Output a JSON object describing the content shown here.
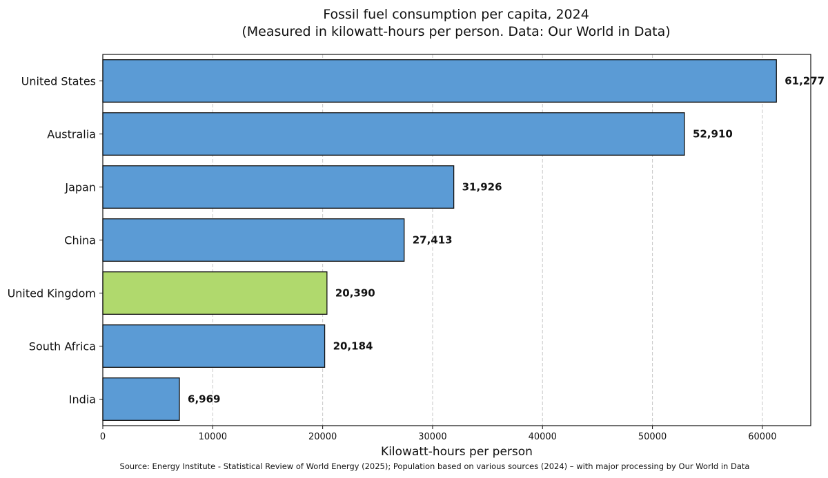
{
  "colors": {
    "bar_default": "#5b9bd5",
    "bar_highlight": "#b0d96d",
    "bar_edge": "#111111",
    "grid": "#c8c8c8"
  },
  "chart_data": {
    "type": "bar",
    "orientation": "horizontal",
    "title": "Fossil fuel consumption per capita, 2024",
    "subtitle": "(Measured in kilowatt-hours per person. Data: Our World in Data)",
    "xlabel": "Kilowatt-hours per person",
    "ylabel": "",
    "xlim": [
      0,
      64400
    ],
    "xticks": [
      0,
      10000,
      20000,
      30000,
      40000,
      50000,
      60000
    ],
    "xtick_labels": [
      "0",
      "10000",
      "20000",
      "30000",
      "40000",
      "50000",
      "60000"
    ],
    "grid": "vertical dashed",
    "categories": [
      "United States",
      "Australia",
      "Japan",
      "China",
      "United Kingdom",
      "South Africa",
      "India"
    ],
    "values": [
      61277,
      52910,
      31926,
      27413,
      20390,
      20184,
      6969
    ],
    "value_labels": [
      "61,277",
      "52,910",
      "31,926",
      "27,413",
      "20,390",
      "20,184",
      "6,969"
    ],
    "highlight": [
      "United Kingdom"
    ],
    "source": "Source: Energy Institute - Statistical Review of World Energy (2025); Population based on various sources (2024) – with major processing by Our World in Data"
  }
}
